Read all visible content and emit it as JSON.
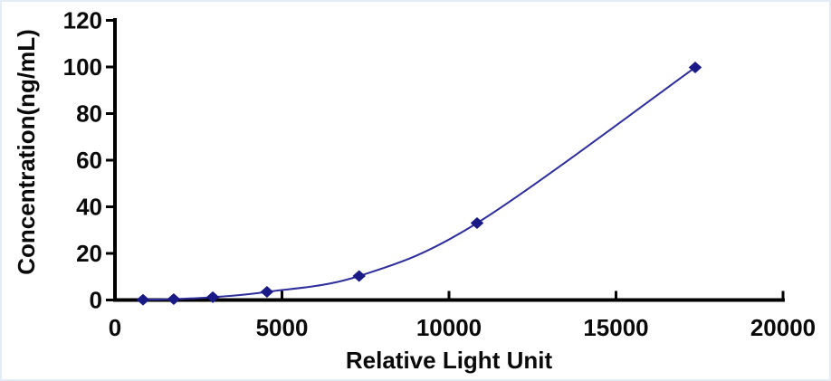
{
  "figure": {
    "background": "#ffffff",
    "frame_border_color": "#e4edf6"
  },
  "chart_data": {
    "type": "line",
    "subtype": "smoothed-scatter-standard-curve",
    "title": "",
    "xlabel": "Relative Light Unit",
    "ylabel": "Concentration(ng/mL)",
    "x": [
      840,
      1760,
      2930,
      4550,
      7310,
      10840,
      17370
    ],
    "y": [
      0.1,
      0.4,
      1.2,
      3.5,
      10.3,
      33,
      99.8
    ],
    "xlim": [
      0,
      20000
    ],
    "ylim": [
      0,
      120
    ],
    "x_ticks": [
      0,
      5000,
      10000,
      15000,
      20000
    ],
    "y_ticks": [
      0,
      20,
      40,
      60,
      80,
      100,
      120
    ],
    "grid": false,
    "legend": "none",
    "marker": "diamond",
    "series_name": "standard-curve",
    "colors": {
      "line": "#2e2e9c",
      "marker": "#1a1a86",
      "axis": "#000000",
      "text": "#0a0a0a"
    }
  }
}
